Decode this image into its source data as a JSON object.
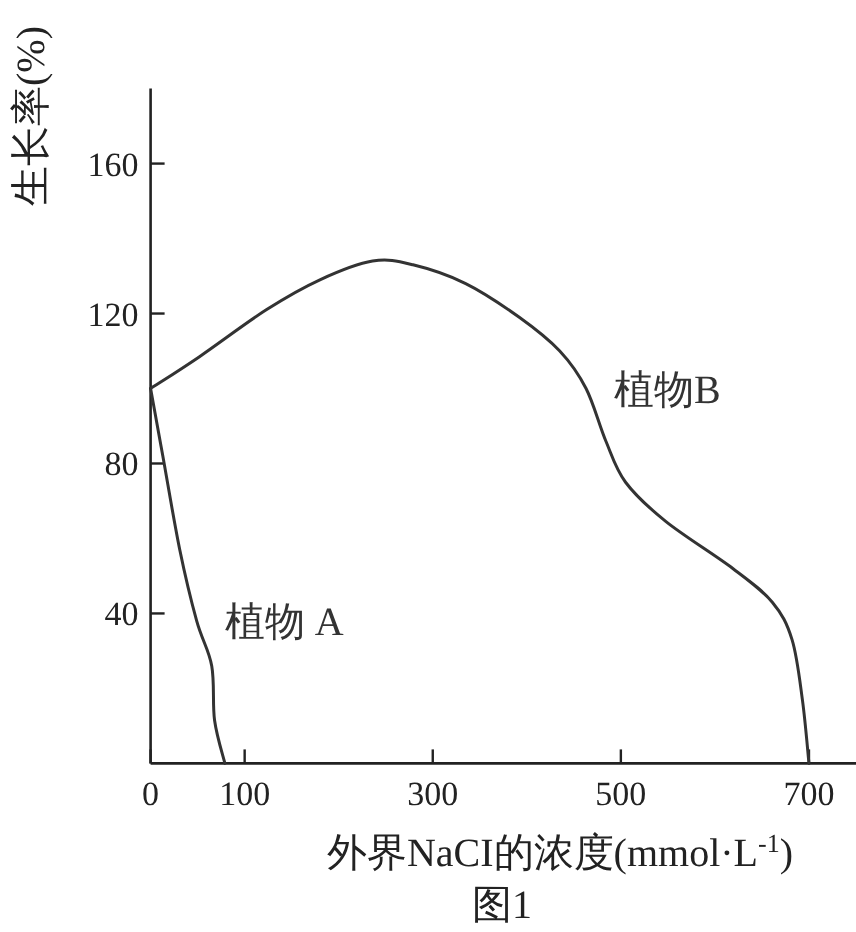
{
  "chart_data": {
    "type": "line",
    "title": "图1",
    "xlabel": "外界NaCI的浓度(mmol·L$^{-1}$)",
    "ylabel": "生长率(%)",
    "xlim": [
      0,
      750
    ],
    "ylim": [
      0,
      180
    ],
    "xticks": [
      0,
      100,
      300,
      500,
      700
    ],
    "yticks": [
      40,
      80,
      120,
      160
    ],
    "marker": "none",
    "line_style": "solid",
    "series": [
      {
        "name": "植物 A",
        "color": "#333333",
        "x": [
          0,
          13,
          31,
          49,
          65,
          68,
          79
        ],
        "values": [
          100,
          82,
          57,
          38,
          26,
          11.5,
          0
        ]
      },
      {
        "name": "植物B",
        "color": "#333333",
        "x": [
          0,
          52,
          123,
          180,
          236,
          279,
          335,
          392,
          435,
          463,
          484,
          505,
          548,
          619,
          661,
          682,
          693,
          700
        ],
        "values": [
          100,
          108.5,
          121,
          129,
          134,
          133,
          128,
          119,
          110,
          100,
          86,
          75,
          64.5,
          52,
          43,
          33,
          17,
          0
        ]
      }
    ]
  }
}
